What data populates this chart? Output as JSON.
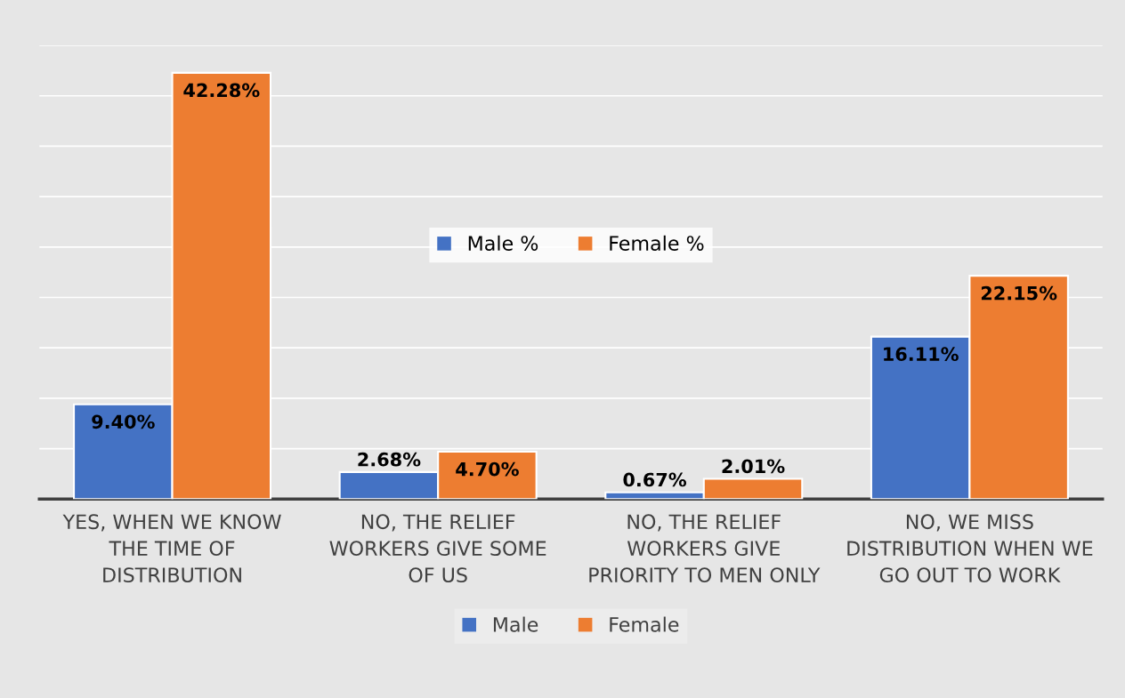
{
  "chart_data": {
    "type": "bar",
    "categories": [
      "YES, WHEN WE KNOW THE TIME OF DISTRIBUTION",
      "NO, THE RELIEF WORKERS GIVE SOME OF US",
      "NO, THE RELIEF WORKERS GIVE PRIORITY TO MEN ONLY",
      "NO, WE MISS DISTRIBUTION WHEN WE GO OUT TO WORK"
    ],
    "series": [
      {
        "name": "Male",
        "color": "#4472c4",
        "values": [
          9.4,
          2.68,
          0.67,
          16.11
        ],
        "value_labels": [
          "9.40%",
          "2.68%",
          "0.67%",
          "16.11%"
        ]
      },
      {
        "name": "Female",
        "color": "#ed7d31",
        "values": [
          42.28,
          4.7,
          2.01,
          22.15
        ],
        "value_labels": [
          "42.28%",
          "4.70%",
          "2.01%",
          "22.15%"
        ]
      }
    ],
    "annotations": [
      "Male %",
      "Female %"
    ],
    "ylim": [
      0,
      45
    ],
    "yticks": [
      {
        "value": 0,
        "label": null
      },
      {
        "value": 5,
        "label": null
      },
      {
        "value": 10,
        "label": null
      },
      {
        "value": 15,
        "label": null
      },
      {
        "value": 20,
        "label": null
      },
      {
        "value": 25,
        "label": null
      },
      {
        "value": 30,
        "label": null
      },
      {
        "value": 35,
        "label": null
      },
      {
        "value": 40,
        "label": null
      },
      {
        "value": 45,
        "label": null
      }
    ],
    "tick_labels": "x",
    "grid": "y",
    "legend": "bottom"
  }
}
